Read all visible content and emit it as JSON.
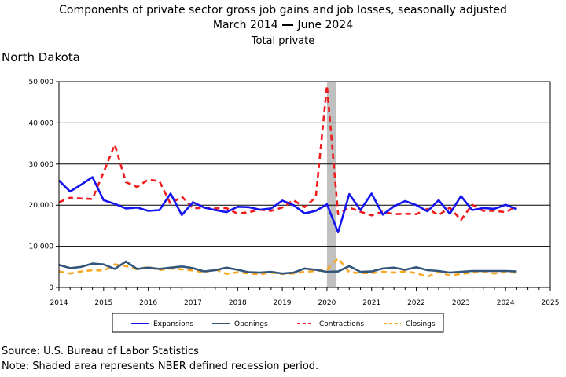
{
  "title": "Components of private sector gross job gains and job losses, seasonally adjusted",
  "subtitle_start": "March 2014",
  "subtitle_end": "June 2024",
  "subtitle2": "Total private",
  "region": "North Dakota",
  "source": "Source: U.S. Bureau of Labor Statistics",
  "note": "Note: Shaded area represents NBER defined recession period.",
  "colors": {
    "expansions": "#1414f0",
    "openings": "#33557a",
    "contractions": "#ee1c1c",
    "closings": "#f7a823",
    "recession": "#c0c0c0"
  },
  "chart_data": {
    "type": "line",
    "title": "Components of private sector gross job gains and job losses, seasonally adjusted",
    "subtitle": "March 2014 — June 2024, Total private",
    "xlim": [
      2014,
      2025
    ],
    "ylim": [
      0,
      50000
    ],
    "x_ticks": [
      "2014",
      "2015",
      "2016",
      "2017",
      "2018",
      "2019",
      "2020",
      "2021",
      "2022",
      "2023",
      "2024",
      "2025"
    ],
    "y_ticks": [
      "0",
      "10,000",
      "20,000",
      "30,000",
      "40,000",
      "50,000"
    ],
    "y_tick_values": [
      0,
      10000,
      20000,
      30000,
      40000,
      50000
    ],
    "grid": "horizontal",
    "legend_position": "bottom",
    "recession": {
      "start": 2020.0,
      "end": 2020.2
    },
    "quarters": [
      "2014Q1",
      "2014Q2",
      "2014Q3",
      "2014Q4",
      "2015Q1",
      "2015Q2",
      "2015Q3",
      "2015Q4",
      "2016Q1",
      "2016Q2",
      "2016Q3",
      "2016Q4",
      "2017Q1",
      "2017Q2",
      "2017Q3",
      "2017Q4",
      "2018Q1",
      "2018Q2",
      "2018Q3",
      "2018Q4",
      "2019Q1",
      "2019Q2",
      "2019Q3",
      "2019Q4",
      "2020Q1",
      "2020Q2",
      "2020Q3",
      "2020Q4",
      "2021Q1",
      "2021Q2",
      "2021Q3",
      "2021Q4",
      "2022Q1",
      "2022Q2",
      "2022Q3",
      "2022Q4",
      "2023Q1",
      "2023Q2",
      "2023Q3",
      "2023Q4",
      "2024Q1",
      "2024Q2"
    ],
    "series": [
      {
        "name": "Expansions",
        "style": "solid",
        "color_key": "expansions",
        "values": [
          26000,
          23300,
          25000,
          26800,
          21200,
          20300,
          19200,
          19400,
          18600,
          18800,
          22800,
          17600,
          20700,
          19400,
          18800,
          18300,
          19600,
          19500,
          18900,
          19200,
          21100,
          20000,
          18000,
          18600,
          20200,
          13400,
          22700,
          18800,
          22800,
          17700,
          19700,
          21000,
          20000,
          18500,
          21200,
          17900,
          22200,
          18800,
          19300,
          19100,
          20100,
          19000
        ]
      },
      {
        "name": "Openings",
        "style": "solid",
        "color_key": "openings",
        "values": [
          5500,
          4700,
          5000,
          5800,
          5600,
          4500,
          6300,
          4500,
          4800,
          4500,
          4800,
          5100,
          4700,
          3900,
          4200,
          4800,
          4300,
          3700,
          3600,
          3800,
          3400,
          3600,
          4600,
          4300,
          3800,
          3900,
          5200,
          3800,
          3900,
          4600,
          4800,
          4300,
          4900,
          4200,
          4000,
          3600,
          3800,
          4000,
          4000,
          4000,
          4000,
          3900
        ]
      },
      {
        "name": "Contractions",
        "style": "dashed",
        "color_key": "contractions",
        "values": [
          20700,
          21800,
          21600,
          21500,
          28000,
          34700,
          25600,
          24400,
          26200,
          25800,
          20300,
          22100,
          19200,
          19400,
          19200,
          19300,
          17900,
          18300,
          18900,
          18600,
          19400,
          21200,
          19500,
          21900,
          49000,
          17800,
          19400,
          18400,
          17500,
          18400,
          17800,
          17900,
          17800,
          19100,
          17600,
          19400,
          16400,
          20100,
          18600,
          18600,
          18300,
          19700
        ]
      },
      {
        "name": "Closings",
        "style": "dashed",
        "color_key": "closings",
        "values": [
          3900,
          3400,
          3900,
          4200,
          4100,
          5600,
          5200,
          4400,
          5000,
          4200,
          4600,
          4400,
          4100,
          3700,
          4400,
          3300,
          3700,
          3400,
          3200,
          3600,
          3300,
          3400,
          3800,
          4000,
          4300,
          7100,
          3700,
          3500,
          3500,
          3800,
          3600,
          3900,
          3500,
          2600,
          3800,
          2900,
          3300,
          3600,
          3800,
          3400,
          3700,
          3600
        ]
      }
    ]
  }
}
